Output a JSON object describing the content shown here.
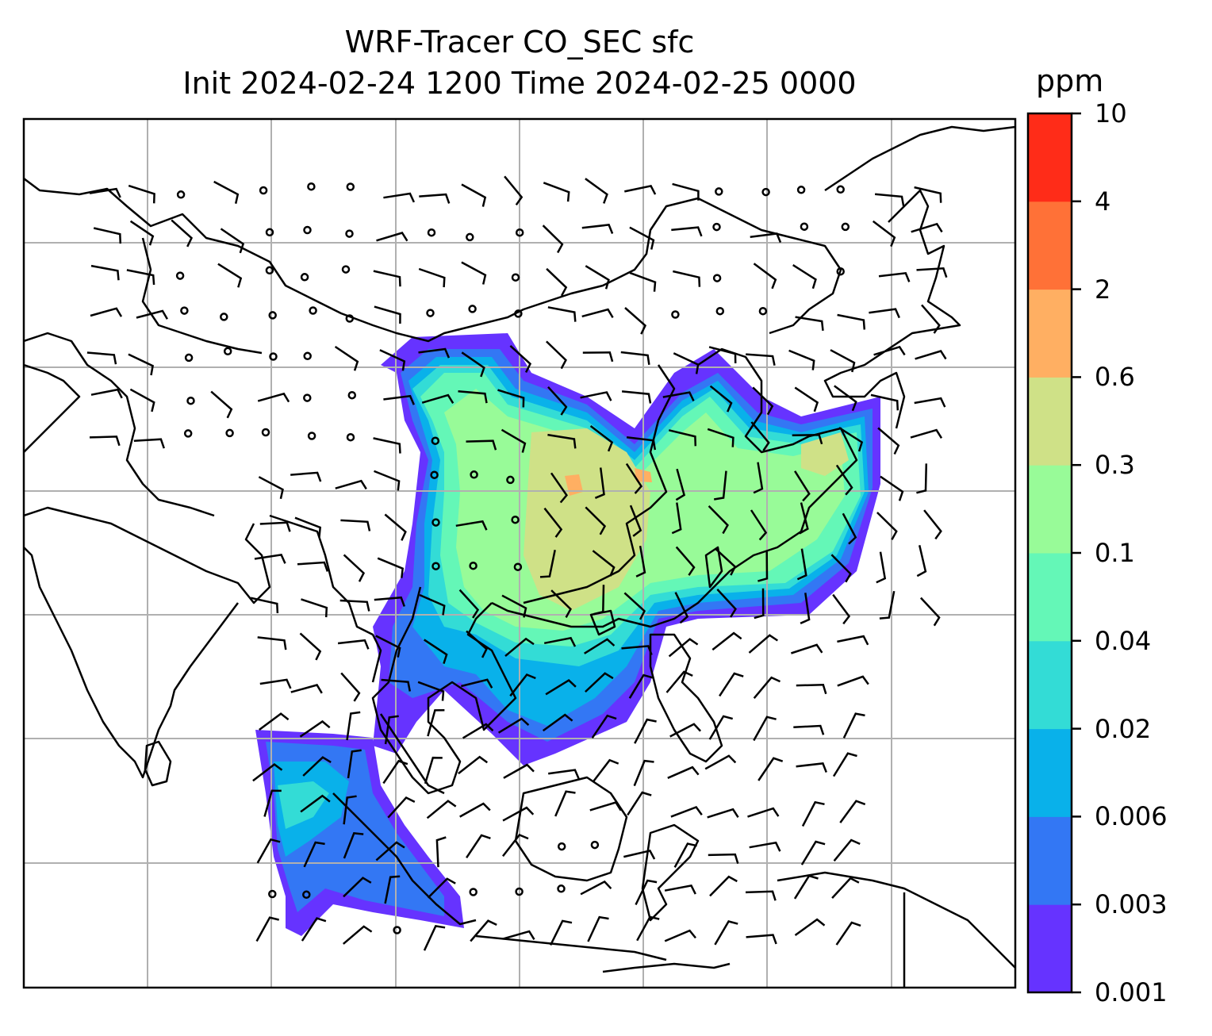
{
  "header": {
    "title_line1": "WRF-Tracer CO_SEC sfc",
    "title_line2": "Init 2024-02-24 1200 Time 2024-02-25 0000"
  },
  "colorbar": {
    "unit": "ppm",
    "levels": [
      "0.001",
      "0.003",
      "0.006",
      "0.02",
      "0.04",
      "0.1",
      "0.3",
      "0.6",
      "2",
      "4",
      "10"
    ],
    "colors": [
      "#6633ff",
      "#3377f4",
      "#09b1ea",
      "#33dcd6",
      "#64f7b7",
      "#98fb98",
      "#cfe187",
      "#ffaf62",
      "#ff7137",
      "#ff2c18"
    ]
  },
  "map": {
    "gridlines": true,
    "coastline_color": "#000000",
    "wind_barb_color": "#000000"
  }
}
